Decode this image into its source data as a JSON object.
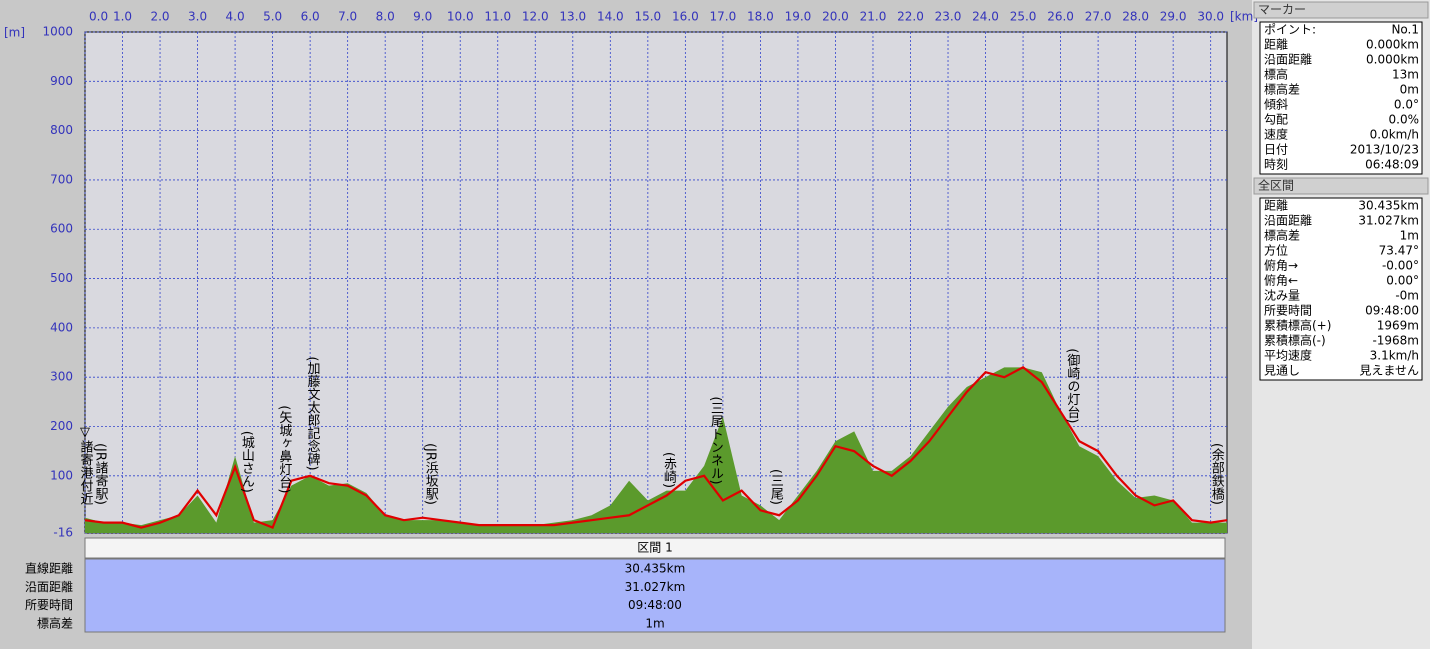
{
  "chart_data": {
    "type": "area-line",
    "x_unit": "[km]",
    "y_unit": "[m]",
    "x": [
      0,
      0.5,
      1,
      1.5,
      2,
      2.5,
      3,
      3.5,
      4,
      4.5,
      5,
      5.5,
      6,
      6.5,
      7,
      7.5,
      8,
      8.5,
      9,
      9.5,
      10,
      10.5,
      11,
      11.5,
      12,
      12.5,
      13,
      13.5,
      14,
      14.5,
      15,
      15.5,
      16,
      16.5,
      17,
      17.5,
      18,
      18.5,
      19,
      19.5,
      20,
      20.5,
      21,
      21.5,
      22,
      22.5,
      23,
      23.5,
      24,
      24.5,
      25,
      25.5,
      26,
      26.5,
      27,
      27.5,
      28,
      28.5,
      29,
      29.5,
      30,
      30.435
    ],
    "series": [
      {
        "kind": "area",
        "color": "#5b9a2c",
        "values": [
          15,
          5,
          5,
          0,
          10,
          20,
          60,
          5,
          140,
          5,
          10,
          80,
          100,
          80,
          85,
          65,
          20,
          10,
          10,
          10,
          5,
          0,
          0,
          0,
          0,
          5,
          10,
          20,
          40,
          90,
          50,
          70,
          70,
          120,
          220,
          60,
          40,
          10,
          60,
          110,
          170,
          190,
          110,
          110,
          140,
          190,
          240,
          280,
          300,
          320,
          320,
          310,
          230,
          160,
          140,
          90,
          55,
          60,
          50,
          5,
          5,
          5
        ]
      },
      {
        "kind": "line",
        "color": "#e00000",
        "values": [
          10,
          5,
          5,
          -5,
          5,
          20,
          70,
          20,
          118,
          10,
          -5,
          90,
          100,
          85,
          80,
          60,
          20,
          10,
          15,
          10,
          5,
          0,
          0,
          0,
          0,
          0,
          5,
          10,
          15,
          20,
          40,
          60,
          90,
          100,
          50,
          70,
          30,
          20,
          50,
          100,
          160,
          150,
          120,
          100,
          130,
          170,
          220,
          270,
          310,
          300,
          320,
          290,
          230,
          170,
          150,
          100,
          60,
          40,
          50,
          10,
          5,
          10
        ]
      }
    ],
    "xlim": [
      0,
      30.435
    ],
    "ylim": [
      -16,
      1000
    ],
    "xticks": [
      {
        "value": 0,
        "label": "0.0"
      },
      {
        "value": 1,
        "label": "1.0"
      },
      {
        "value": 2,
        "label": "2.0"
      },
      {
        "value": 3,
        "label": "3.0"
      },
      {
        "value": 4,
        "label": "4.0"
      },
      {
        "value": 5,
        "label": "5.0"
      },
      {
        "value": 6,
        "label": "6.0"
      },
      {
        "value": 7,
        "label": "7.0"
      },
      {
        "value": 8,
        "label": "8.0"
      },
      {
        "value": 9,
        "label": "9.0"
      },
      {
        "value": 10,
        "label": "10.0"
      },
      {
        "value": 11,
        "label": "11.0"
      },
      {
        "value": 12,
        "label": "12.0"
      },
      {
        "value": 13,
        "label": "13.0"
      },
      {
        "value": 14,
        "label": "14.0"
      },
      {
        "value": 15,
        "label": "15.0"
      },
      {
        "value": 16,
        "label": "16.0"
      },
      {
        "value": 17,
        "label": "17.0"
      },
      {
        "value": 18,
        "label": "18.0"
      },
      {
        "value": 19,
        "label": "19.0"
      },
      {
        "value": 20,
        "label": "20.0"
      },
      {
        "value": 21,
        "label": "21.0"
      },
      {
        "value": 22,
        "label": "22.0"
      },
      {
        "value": 23,
        "label": "23.0"
      },
      {
        "value": 24,
        "label": "24.0"
      },
      {
        "value": 25,
        "label": "25.0"
      },
      {
        "value": 26,
        "label": "26.0"
      },
      {
        "value": 27,
        "label": "27.0"
      },
      {
        "value": 28,
        "label": "28.0"
      },
      {
        "value": 29,
        "label": "29.0"
      },
      {
        "value": 30,
        "label": "30.0"
      }
    ],
    "yticks": [
      -16,
      100,
      200,
      300,
      400,
      500,
      600,
      700,
      800,
      900,
      1000
    ],
    "grid": true,
    "annotations": [
      {
        "x": 0,
        "text": "▽諸寄港付近"
      },
      {
        "x": 0.4,
        "text": "(JR諸寄駅)"
      },
      {
        "x": 4.3,
        "text": "(城山さん)"
      },
      {
        "x": 5.3,
        "text": "(矢城ヶ鼻灯台)"
      },
      {
        "x": 6.05,
        "text": "(加藤文太郎記念碑)"
      },
      {
        "x": 9.2,
        "text": "(JR浜坂駅)"
      },
      {
        "x": 15.55,
        "text": "(赤崎)"
      },
      {
        "x": 16.8,
        "text": "(三尾トンネル)"
      },
      {
        "x": 18.4,
        "text": "(三尾)"
      },
      {
        "x": 26.3,
        "text": "(御崎の灯台)"
      },
      {
        "x": 30.15,
        "text": "(余部鉄橋)"
      }
    ]
  },
  "section_table": {
    "header": "区間 1",
    "rows": [
      [
        "直線距離",
        "30.435km"
      ],
      [
        "沿面距離",
        "31.027km"
      ],
      [
        "所要時間",
        "09:48:00"
      ],
      [
        "標高差",
        "1m"
      ]
    ]
  },
  "marker_panel": {
    "title": "マーカー",
    "rows": [
      [
        "ポイント:",
        "No.1"
      ],
      [
        "距離",
        "0.000km"
      ],
      [
        "沿面距離",
        "0.000km"
      ],
      [
        "標高",
        "13m"
      ],
      [
        "標高差",
        "0m"
      ],
      [
        "傾斜",
        "0.0°"
      ],
      [
        "勾配",
        "0.0%"
      ],
      [
        "速度",
        "0.0km/h"
      ],
      [
        "日付",
        "2013/10/23"
      ],
      [
        "時刻",
        "06:48:09"
      ]
    ]
  },
  "summary_panel": {
    "title": "全区間",
    "rows": [
      [
        "距離",
        "30.435km"
      ],
      [
        "沿面距離",
        "31.027km"
      ],
      [
        "標高差",
        "1m"
      ],
      [
        "方位",
        "73.47°"
      ],
      [
        "俯角→",
        "-0.00°"
      ],
      [
        "俯角←",
        "0.00°"
      ],
      [
        "沈み量",
        "-0m"
      ],
      [
        "所要時間",
        "09:48:00"
      ],
      [
        "累積標高(+)",
        "1969m"
      ],
      [
        "累積標高(-)",
        "-1968m"
      ],
      [
        "平均速度",
        "3.1km/h"
      ],
      [
        "見通し",
        "見えません"
      ]
    ]
  }
}
